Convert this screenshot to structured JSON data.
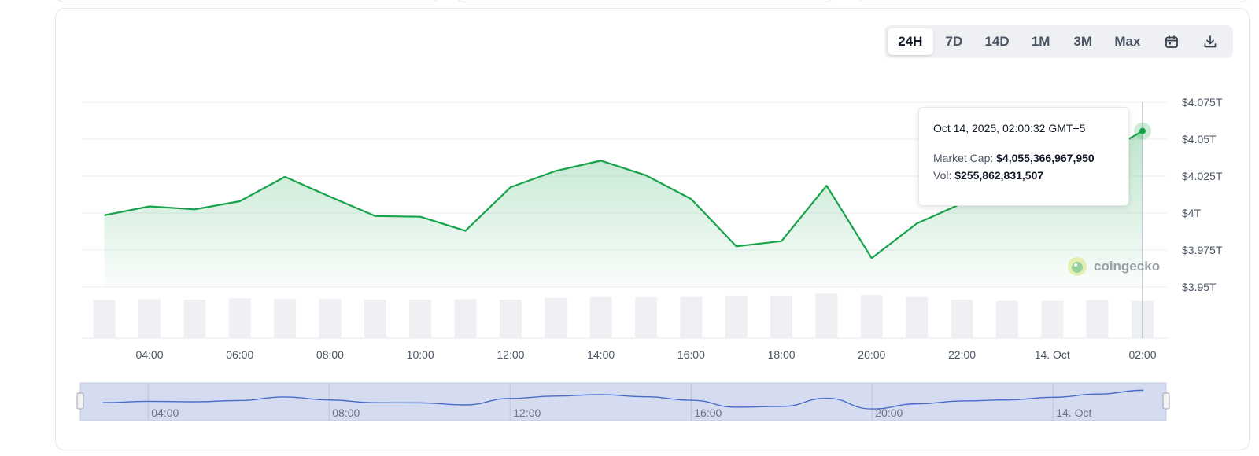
{
  "range_selector": {
    "options": [
      "24H",
      "7D",
      "14D",
      "1M",
      "3M",
      "Max"
    ],
    "selected": "24H",
    "calendar_icon": "calendar-icon",
    "download_icon": "download-icon"
  },
  "tooltip": {
    "date": "Oct 14, 2025, 02:00:32 GMT+5",
    "market_cap_label": "Market Cap:",
    "market_cap_value": "$4,055,366,967,950",
    "vol_label": "Vol:",
    "vol_value": "$255,862,831,507"
  },
  "watermark": {
    "text": "coingecko",
    "icon": "gecko-logo-icon"
  },
  "colors": {
    "line": "#16a34a",
    "area": "#16a34a",
    "volume_bar": "#eef0f4",
    "navigator_fill": "#d6dcf0",
    "navigator_line": "#4a6cc9"
  },
  "chart_data": {
    "type": "line",
    "title": "",
    "xlabel": "",
    "ylabel": "",
    "x_unit": "hour",
    "x_tick_labels": [
      "04:00",
      "06:00",
      "08:00",
      "10:00",
      "12:00",
      "14:00",
      "16:00",
      "18:00",
      "20:00",
      "22:00",
      "14. Oct",
      "02:00"
    ],
    "x_tick_hours": [
      4,
      6,
      8,
      10,
      12,
      14,
      16,
      18,
      20,
      22,
      24,
      26
    ],
    "y_tick_labels": [
      "$3.95T",
      "$3.975T",
      "$4T",
      "$4.025T",
      "$4.05T",
      "$4.075T"
    ],
    "y_tick_values": [
      3.95,
      3.975,
      4.0,
      4.025,
      4.05,
      4.075
    ],
    "ylim": [
      3.95,
      4.075
    ],
    "xlim": [
      2.5,
      26.5
    ],
    "grid": true,
    "series": [
      {
        "name": "Market Cap",
        "x": [
          3,
          4,
          5,
          6,
          7,
          8,
          9,
          10,
          11,
          12,
          13,
          14,
          15,
          16,
          17,
          18,
          19,
          20,
          21,
          22,
          23,
          24,
          25,
          26
        ],
        "values": [
          3.9985,
          4.0045,
          4.0025,
          4.008,
          4.0245,
          4.011,
          3.998,
          3.9975,
          3.988,
          4.0175,
          4.0285,
          4.0355,
          4.0255,
          4.0095,
          3.9775,
          3.981,
          4.0185,
          3.9695,
          3.993,
          4.0065,
          4.011,
          4.023,
          4.038,
          4.0555
        ]
      }
    ],
    "volume_bars": {
      "x": [
        3,
        4,
        5,
        6,
        7,
        8,
        9,
        10,
        11,
        12,
        13,
        14,
        15,
        16,
        17,
        18,
        19,
        20,
        21,
        22,
        23,
        24,
        25,
        26
      ],
      "relative_values": [
        0.82,
        0.84,
        0.83,
        0.86,
        0.85,
        0.85,
        0.83,
        0.83,
        0.84,
        0.83,
        0.87,
        0.89,
        0.88,
        0.89,
        0.92,
        0.92,
        0.96,
        0.93,
        0.89,
        0.83,
        0.8,
        0.8,
        0.82,
        0.8
      ]
    },
    "navigator": {
      "tick_labels": [
        "04:00",
        "08:00",
        "12:00",
        "16:00",
        "20:00",
        "14. Oct"
      ],
      "tick_hours": [
        4,
        8,
        12,
        16,
        20,
        24
      ]
    },
    "hovered_point": {
      "x": 26,
      "value": 4.0555
    }
  }
}
